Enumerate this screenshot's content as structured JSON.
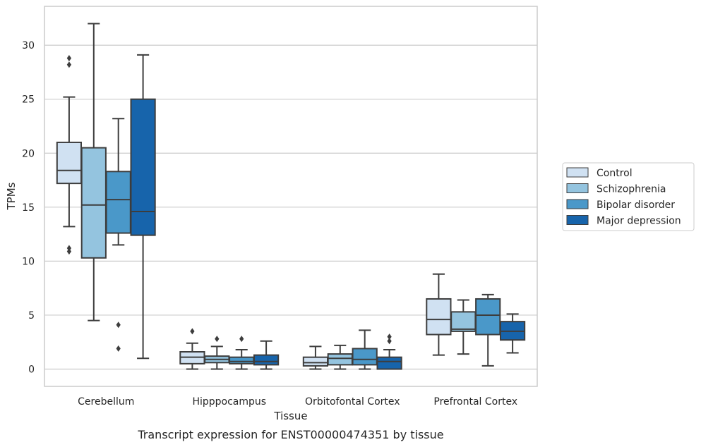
{
  "chart_data": {
    "type": "box",
    "title": "",
    "caption": "Transcript expression for ENST00000474351 by tissue",
    "xlabel": "Tissue",
    "ylabel": "TPMs",
    "ylim": [
      -1.6,
      33.6
    ],
    "yticks": [
      0,
      5,
      10,
      15,
      20,
      25,
      30
    ],
    "grid": "horizontal",
    "legend_placement": "center-right outside",
    "categories": [
      "Cerebellum",
      "Hipppocampus",
      "Orbitofontal Cortex",
      "Prefrontal Cortex"
    ],
    "series": [
      {
        "name": "Control",
        "color": "#d0e1f2",
        "boxes": [
          {
            "whislo": 13.2,
            "q1": 17.2,
            "med": 18.4,
            "q3": 21.0,
            "whishi": 25.2,
            "fliers": [
              28.8,
              28.2,
              11.2,
              10.9
            ]
          },
          {
            "whislo": 0.0,
            "q1": 0.5,
            "med": 1.1,
            "q3": 1.6,
            "whishi": 2.4,
            "fliers": [
              3.5
            ]
          },
          {
            "whislo": 0.0,
            "q1": 0.3,
            "med": 0.6,
            "q3": 1.1,
            "whishi": 2.1,
            "fliers": []
          },
          {
            "whislo": 1.3,
            "q1": 3.2,
            "med": 4.6,
            "q3": 6.5,
            "whishi": 8.8,
            "fliers": []
          }
        ]
      },
      {
        "name": "Schizophrenia",
        "color": "#94c4df",
        "boxes": [
          {
            "whislo": 4.5,
            "q1": 10.3,
            "med": 15.2,
            "q3": 20.5,
            "whishi": 32.0,
            "fliers": []
          },
          {
            "whislo": 0.0,
            "q1": 0.6,
            "med": 0.9,
            "q3": 1.2,
            "whishi": 2.1,
            "fliers": [
              2.8
            ]
          },
          {
            "whislo": 0.0,
            "q1": 0.4,
            "med": 1.0,
            "q3": 1.4,
            "whishi": 2.2,
            "fliers": []
          },
          {
            "whislo": 1.4,
            "q1": 3.5,
            "med": 3.7,
            "q3": 5.3,
            "whishi": 6.4,
            "fliers": []
          }
        ]
      },
      {
        "name": "Bipolar disorder",
        "color": "#4a98c9",
        "boxes": [
          {
            "whislo": 11.5,
            "q1": 12.6,
            "med": 15.7,
            "q3": 18.3,
            "whishi": 23.2,
            "fliers": [
              4.1,
              1.9
            ]
          },
          {
            "whislo": 0.0,
            "q1": 0.5,
            "med": 0.7,
            "q3": 1.1,
            "whishi": 1.8,
            "fliers": [
              2.8
            ]
          },
          {
            "whislo": 0.0,
            "q1": 0.4,
            "med": 0.9,
            "q3": 1.9,
            "whishi": 3.6,
            "fliers": []
          },
          {
            "whislo": 0.3,
            "q1": 3.2,
            "med": 5.0,
            "q3": 6.5,
            "whishi": 6.9,
            "fliers": []
          }
        ]
      },
      {
        "name": "Major depression",
        "color": "#1764ab",
        "boxes": [
          {
            "whislo": 1.0,
            "q1": 12.4,
            "med": 14.6,
            "q3": 25.0,
            "whishi": 29.1,
            "fliers": []
          },
          {
            "whislo": 0.0,
            "q1": 0.4,
            "med": 0.7,
            "q3": 1.3,
            "whishi": 2.6,
            "fliers": []
          },
          {
            "whislo": 0.0,
            "q1": 0.0,
            "med": 0.7,
            "q3": 1.1,
            "whishi": 1.8,
            "fliers": [
              3.0,
              2.6
            ]
          },
          {
            "whislo": 1.5,
            "q1": 2.7,
            "med": 3.5,
            "q3": 4.4,
            "whishi": 5.1,
            "fliers": []
          }
        ]
      }
    ]
  }
}
